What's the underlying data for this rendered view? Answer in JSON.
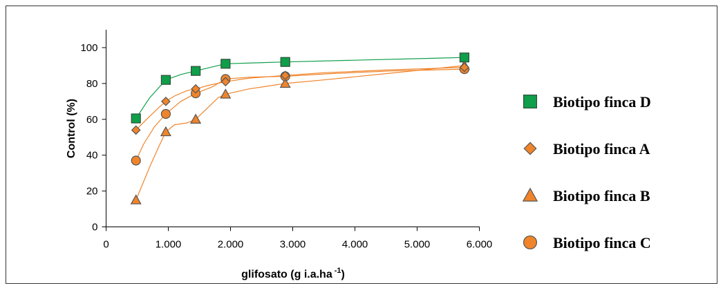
{
  "chart_data": {
    "type": "line",
    "xlabel": "glifosato (g i.a.ha",
    "xlabel_sup": "-1",
    "xlabel_close": ")",
    "ylabel": "Control (%)",
    "xlim": [
      0,
      6000
    ],
    "ylim": [
      0,
      110
    ],
    "x_ticks": [
      0,
      1000,
      2000,
      3000,
      4000,
      5000,
      6000
    ],
    "x_tick_labels": [
      "0",
      "1.000",
      "2.000",
      "3.000",
      "4.000",
      "5.000",
      "6.000"
    ],
    "y_ticks": [
      0,
      20,
      40,
      60,
      80,
      100
    ],
    "y_tick_labels": [
      "0",
      "20",
      "40",
      "60",
      "80",
      "100"
    ],
    "grid": false,
    "legend_position": "right",
    "x": [
      480,
      960,
      1440,
      1920,
      2880,
      5760
    ],
    "series": [
      {
        "name": "Biotipo finca D",
        "marker": "square",
        "fill": "#0f9e4a",
        "line_color": "#0f9e4a",
        "values": [
          60.5,
          82,
          87,
          91,
          92,
          94.5
        ],
        "fit": [
          [
            480,
            60.5
          ],
          [
            700,
            72
          ],
          [
            960,
            82
          ],
          [
            1200,
            85
          ],
          [
            1440,
            87
          ],
          [
            1920,
            91
          ],
          [
            2880,
            92
          ],
          [
            5760,
            94.5
          ]
        ]
      },
      {
        "name": "Biotipo finca A",
        "marker": "diamond",
        "fill": "#f0842a",
        "line_color": "#f0842a",
        "values": [
          54,
          70,
          77,
          81,
          84.5,
          89
        ],
        "fit": [
          [
            480,
            54
          ],
          [
            650,
            60
          ],
          [
            830,
            66
          ],
          [
            960,
            70
          ],
          [
            1100,
            73
          ],
          [
            1300,
            76
          ],
          [
            1440,
            77
          ],
          [
            1650,
            79
          ],
          [
            1920,
            81
          ],
          [
            2300,
            83
          ],
          [
            2880,
            84.5
          ],
          [
            3500,
            86
          ],
          [
            4500,
            87.5
          ],
          [
            5760,
            89
          ]
        ]
      },
      {
        "name": "Biotipo finca B",
        "marker": "triangle",
        "fill": "#f0842a",
        "line_color": "#f0842a",
        "values": [
          15,
          53,
          60,
          74,
          80,
          90
        ],
        "fit": [
          [
            480,
            15
          ],
          [
            600,
            25
          ],
          [
            720,
            35
          ],
          [
            850,
            45
          ],
          [
            960,
            53
          ],
          [
            1100,
            57
          ],
          [
            1300,
            58
          ],
          [
            1440,
            60
          ],
          [
            1620,
            66
          ],
          [
            1800,
            72
          ],
          [
            1920,
            74
          ],
          [
            2300,
            77
          ],
          [
            2880,
            80
          ],
          [
            3500,
            82
          ],
          [
            4500,
            85.5
          ],
          [
            5760,
            90
          ]
        ]
      },
      {
        "name": "Biotipo finca C",
        "marker": "circle",
        "fill": "#f0842a",
        "line_color": "#f0842a",
        "values": [
          37,
          63,
          74.5,
          82.5,
          84,
          88
        ],
        "fit": [
          [
            480,
            37
          ],
          [
            600,
            46
          ],
          [
            780,
            56
          ],
          [
            960,
            63
          ],
          [
            1200,
            70
          ],
          [
            1440,
            74.5
          ],
          [
            1700,
            78
          ],
          [
            1920,
            82.5
          ],
          [
            2300,
            83.5
          ],
          [
            2880,
            84
          ],
          [
            3600,
            85.5
          ],
          [
            4600,
            87
          ],
          [
            5760,
            88
          ]
        ]
      }
    ]
  }
}
